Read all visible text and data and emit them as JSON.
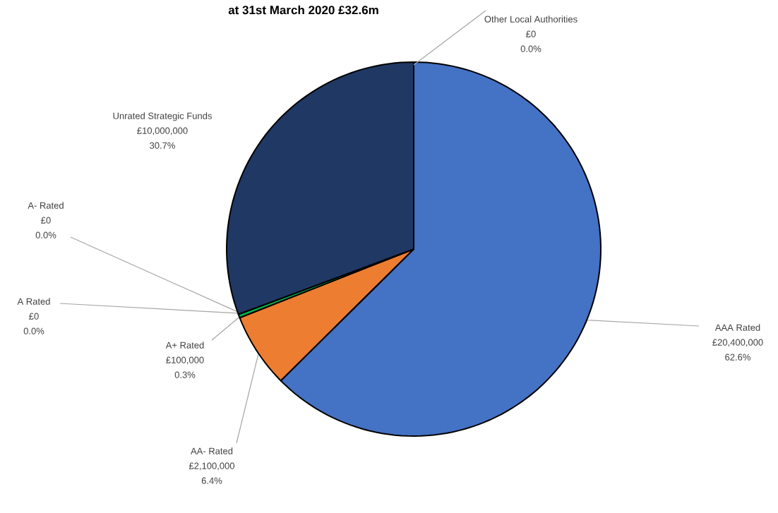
{
  "chart_data": {
    "type": "pie",
    "title": "at 31st March 2020 £32.6m",
    "categories": [
      "AAA Rated",
      "AA- Rated",
      "A+ Rated",
      "A Rated",
      "A- Rated",
      "Unrated Strategic Funds",
      "Other Local Authorities"
    ],
    "values": [
      20400000,
      2100000,
      100000,
      0,
      0,
      10000000,
      0
    ],
    "colors": [
      "#4472c4",
      "#ed7d31",
      "#00b050",
      "#a5a5a5",
      "#ffc000",
      "#203864",
      "#264478"
    ],
    "value_labels": [
      "£20,400,000",
      "£2,100,000",
      "£100,000",
      "£0",
      "£0",
      "£10,000,000",
      "£0"
    ],
    "annotations": [
      "62.6%",
      "6.4%",
      "0.3%",
      "0.0%",
      "0.0%",
      "30.7%",
      "0.0%"
    ]
  }
}
